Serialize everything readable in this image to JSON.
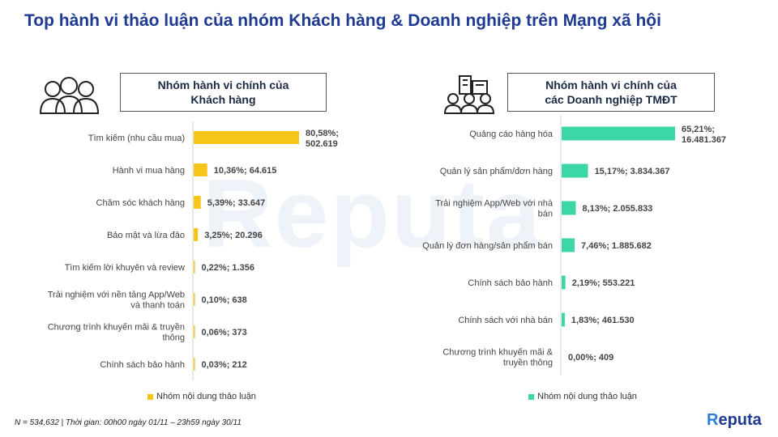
{
  "title": "Top hành vi thảo luận của nhóm Khách hàng & Doanh nghiệp trên Mạng xã hội",
  "watermark": "Reputa",
  "footnote": "N = 534,632 | Thời gian: 00h00 ngày 01/11 – 23h59 ngày 30/11",
  "logo": "Reputa",
  "left_panel": {
    "header": "Nhóm hành vi chính của\nKhách hàng",
    "icon": "people-group-icon",
    "legend": "Nhóm nội dung thảo luận",
    "color": "#f5c518"
  },
  "right_panel": {
    "header": "Nhóm hành vi chính của\ncác Doanh nghiệp TMĐT",
    "icon": "business-people-icon",
    "legend": "Nhóm nội dung thảo luận",
    "color": "#3dd6a8"
  },
  "chart_data": [
    {
      "type": "bar",
      "orientation": "horizontal",
      "categories": [
        "Tìm kiếm (nhu cầu mua)",
        "Hành vi mua hàng",
        "Chăm sóc khách hàng",
        "Bảo mật và lừa đảo",
        "Tìm kiếm lời khuyên và review",
        "Trải nghiệm với nền tảng App/Web và thanh toán",
        "Chương trình khuyến mãi & truyền thông",
        "Chính sách bảo hành"
      ],
      "values": [
        80.58,
        10.36,
        5.39,
        3.25,
        0.22,
        0.1,
        0.06,
        0.03
      ],
      "counts": [
        502619,
        64615,
        33647,
        20296,
        1356,
        638,
        373,
        212
      ],
      "labels": [
        "80,58%; 502.619",
        "10,36%; 64.615",
        "5,39%; 33.647",
        "3,25%; 20.296",
        "0,22%; 1.356",
        "0,10%; 638",
        "0,06%; 373",
        "0,03%; 212"
      ],
      "legend": "Nhóm nội dung thảo luận"
    },
    {
      "type": "bar",
      "orientation": "horizontal",
      "categories": [
        "Quảng cáo hàng hóa",
        "Quản lý sản phẩm/đơn hàng",
        "Trải nghiệm App/Web với nhà bán",
        "Quản lý đơn hàng/sản phẩm bán",
        "Chính sách bảo hành",
        "Chính sách với nhà bán",
        "Chương trình khuyến mãi & truyền thông"
      ],
      "values": [
        65.21,
        15.17,
        8.13,
        7.46,
        2.19,
        1.83,
        0.0
      ],
      "counts": [
        16481367,
        3834367,
        2055833,
        1885682,
        553221,
        461530,
        409
      ],
      "labels": [
        "65,21%; 16.481.367",
        "15,17%; 3.834.367",
        "8,13%; 2.055.833",
        "7,46%; 1.885.682",
        "2,19%; 553.221",
        "1,83%; 461.530",
        "0,00%; 409"
      ],
      "legend": "Nhóm nội dung thảo luận"
    }
  ]
}
